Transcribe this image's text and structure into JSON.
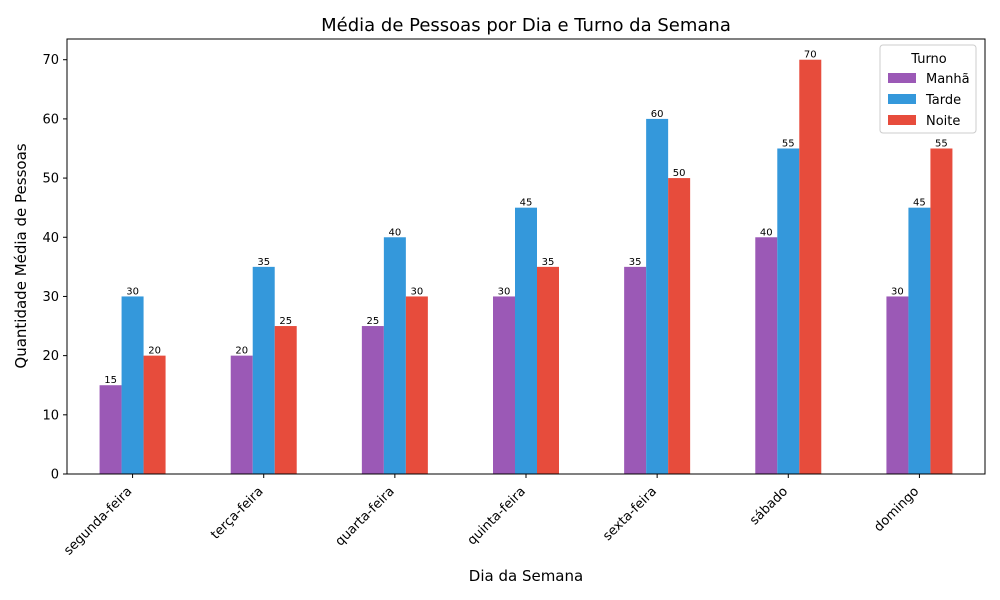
{
  "chart_data": {
    "type": "bar",
    "title": "Média de Pessoas por Dia e Turno da Semana",
    "xlabel": "Dia da Semana",
    "ylabel": "Quantidade Média de Pessoas",
    "categories": [
      "segunda-feira",
      "terça-feira",
      "quarta-feira",
      "quinta-feira",
      "sexta-feira",
      "sábado",
      "domingo"
    ],
    "series": [
      {
        "name": "Manhã",
        "color": "#9b59b6",
        "values": [
          15,
          20,
          25,
          30,
          35,
          40,
          30
        ]
      },
      {
        "name": "Tarde",
        "color": "#3498db",
        "values": [
          30,
          35,
          40,
          45,
          60,
          55,
          45
        ]
      },
      {
        "name": "Noite",
        "color": "#e74c3c",
        "values": [
          20,
          25,
          30,
          35,
          50,
          70,
          55
        ]
      }
    ],
    "ylim": [
      0,
      73.5
    ],
    "yticks": [
      0,
      10,
      20,
      30,
      40,
      50,
      60,
      70
    ],
    "grid": false,
    "legend": {
      "title": "Turno",
      "position": "top-right"
    }
  }
}
